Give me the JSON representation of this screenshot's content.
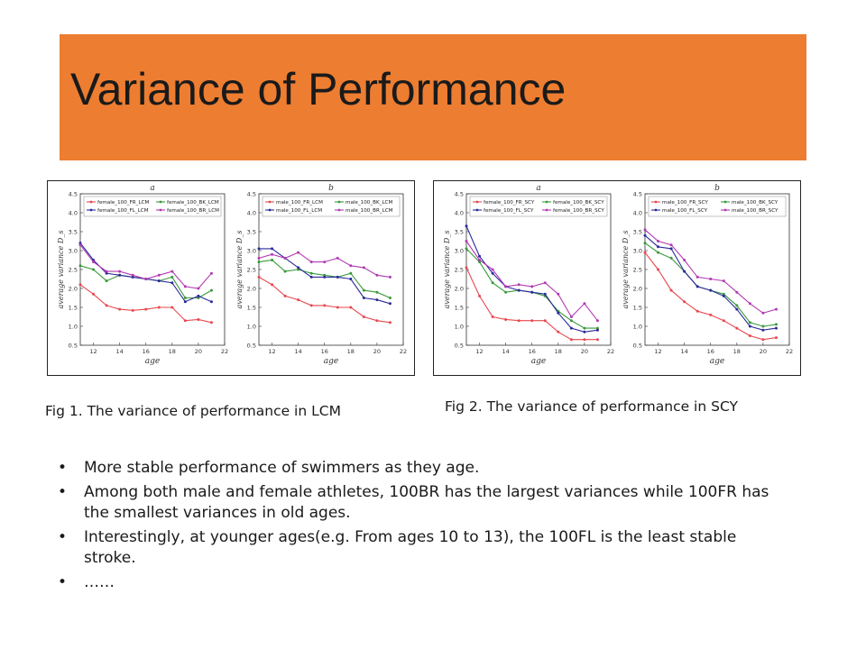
{
  "title": "Variance of Performance",
  "colors": {
    "banner": "#ED7D31"
  },
  "figures": [
    {
      "caption": "Fig 1. The variance of performance in LCM"
    },
    {
      "caption": "Fig 2. The variance of performance in SCY"
    }
  ],
  "bullets": [
    "More stable performance of swimmers as they age.",
    "Among both male and female athletes, 100BR has the largest variances while 100FR has the smallest variances in old ages.",
    "Interestingly, at younger ages(e.g.  From ages 10 to 13), the 100FL is the least stable stroke.",
    "……"
  ],
  "chart_data": [
    {
      "type": "line",
      "figure": 1,
      "title": "a",
      "xlabel": "age",
      "ylabel": "average variance D_s",
      "xlim": [
        11,
        22
      ],
      "ylim": [
        0.5,
        4.5
      ],
      "xticks": [
        12,
        14,
        16,
        18,
        20,
        22
      ],
      "yticks": [
        0.5,
        1.0,
        1.5,
        2.0,
        2.5,
        3.0,
        3.5,
        4.0,
        4.5
      ],
      "legend_position": "top",
      "grid": false,
      "x": [
        11,
        12,
        13,
        14,
        15,
        16,
        17,
        18,
        19,
        20,
        21
      ],
      "series": [
        {
          "name": "female_100_FR_LCM",
          "color": "#e8484e",
          "values": [
            2.1,
            1.85,
            1.55,
            1.45,
            1.42,
            1.45,
            1.5,
            1.5,
            1.15,
            1.18,
            1.1
          ]
        },
        {
          "name": "female_100_BK_LCM",
          "color": "#3a9a3a",
          "values": [
            2.6,
            2.5,
            2.2,
            2.35,
            2.3,
            2.25,
            2.2,
            2.3,
            1.75,
            1.75,
            1.95
          ]
        },
        {
          "name": "female_100_FL_LCM",
          "color": "#2a2a9a",
          "values": [
            3.2,
            2.75,
            2.4,
            2.35,
            2.3,
            2.25,
            2.2,
            2.15,
            1.65,
            1.8,
            1.65
          ]
        },
        {
          "name": "female_100_BR_LCM",
          "color": "#b23ab2",
          "values": [
            3.15,
            2.7,
            2.45,
            2.45,
            2.35,
            2.25,
            2.35,
            2.45,
            2.05,
            2.0,
            2.4
          ]
        }
      ]
    },
    {
      "type": "line",
      "figure": 1,
      "title": "b",
      "xlabel": "age",
      "ylabel": "average variance D_s",
      "xlim": [
        11,
        22
      ],
      "ylim": [
        0.5,
        4.5
      ],
      "xticks": [
        12,
        14,
        16,
        18,
        20,
        22
      ],
      "yticks": [
        0.5,
        1.0,
        1.5,
        2.0,
        2.5,
        3.0,
        3.5,
        4.0,
        4.5
      ],
      "legend_position": "top",
      "grid": false,
      "x": [
        11,
        12,
        13,
        14,
        15,
        16,
        17,
        18,
        19,
        20,
        21
      ],
      "series": [
        {
          "name": "male_100_FR_LCM",
          "color": "#e8484e",
          "values": [
            2.3,
            2.1,
            1.8,
            1.7,
            1.55,
            1.55,
            1.5,
            1.5,
            1.25,
            1.15,
            1.1
          ]
        },
        {
          "name": "male_100_BK_LCM",
          "color": "#3a9a3a",
          "values": [
            2.7,
            2.75,
            2.45,
            2.5,
            2.4,
            2.35,
            2.3,
            2.4,
            1.95,
            1.9,
            1.75
          ]
        },
        {
          "name": "male_100_FL_LCM",
          "color": "#2a2a9a",
          "values": [
            3.05,
            3.05,
            2.8,
            2.55,
            2.3,
            2.3,
            2.3,
            2.25,
            1.75,
            1.7,
            1.6
          ]
        },
        {
          "name": "male_100_BR_LCM",
          "color": "#b23ab2",
          "values": [
            2.8,
            2.9,
            2.8,
            2.95,
            2.7,
            2.7,
            2.8,
            2.6,
            2.55,
            2.35,
            2.3
          ]
        }
      ]
    },
    {
      "type": "line",
      "figure": 2,
      "title": "a",
      "xlabel": "age",
      "ylabel": "average variance D_s",
      "xlim": [
        11,
        22
      ],
      "ylim": [
        0.5,
        4.5
      ],
      "xticks": [
        12,
        14,
        16,
        18,
        20,
        22
      ],
      "yticks": [
        0.5,
        1.0,
        1.5,
        2.0,
        2.5,
        3.0,
        3.5,
        4.0,
        4.5
      ],
      "legend_position": "top",
      "grid": false,
      "x": [
        11,
        12,
        13,
        14,
        15,
        16,
        17,
        18,
        19,
        20,
        21
      ],
      "series": [
        {
          "name": "female_100_FR_SCY",
          "color": "#e8484e",
          "values": [
            2.55,
            1.8,
            1.25,
            1.18,
            1.15,
            1.15,
            1.15,
            0.85,
            0.65,
            0.65,
            0.65
          ]
        },
        {
          "name": "female_100_BK_SCY",
          "color": "#3a9a3a",
          "values": [
            3.05,
            2.7,
            2.15,
            1.9,
            1.95,
            1.9,
            1.8,
            1.4,
            1.15,
            0.95,
            0.95
          ]
        },
        {
          "name": "female_100_FL_SCY",
          "color": "#2a2a9a",
          "values": [
            3.65,
            2.85,
            2.4,
            2.05,
            1.95,
            1.9,
            1.85,
            1.35,
            0.95,
            0.85,
            0.9
          ]
        },
        {
          "name": "female_100_BR_SCY",
          "color": "#b23ab2",
          "values": [
            3.25,
            2.75,
            2.5,
            2.05,
            2.1,
            2.05,
            2.15,
            1.85,
            1.25,
            1.6,
            1.15
          ]
        }
      ]
    },
    {
      "type": "line",
      "figure": 2,
      "title": "b",
      "xlabel": "age",
      "ylabel": "average variance D_s",
      "xlim": [
        11,
        22
      ],
      "ylim": [
        0.5,
        4.5
      ],
      "xticks": [
        12,
        14,
        16,
        18,
        20,
        22
      ],
      "yticks": [
        0.5,
        1.0,
        1.5,
        2.0,
        2.5,
        3.0,
        3.5,
        4.0,
        4.5
      ],
      "legend_position": "top",
      "grid": false,
      "x": [
        11,
        12,
        13,
        14,
        15,
        16,
        17,
        18,
        19,
        20,
        21
      ],
      "series": [
        {
          "name": "male_100_FR_SCY",
          "color": "#e8484e",
          "values": [
            2.95,
            2.5,
            1.95,
            1.65,
            1.4,
            1.3,
            1.15,
            0.95,
            0.75,
            0.65,
            0.7
          ]
        },
        {
          "name": "male_100_BK_SCY",
          "color": "#3a9a3a",
          "values": [
            3.2,
            2.95,
            2.8,
            2.45,
            2.05,
            1.95,
            1.85,
            1.55,
            1.1,
            1.0,
            1.05
          ]
        },
        {
          "name": "male_100_FL_SCY",
          "color": "#2a2a9a",
          "values": [
            3.4,
            3.1,
            3.05,
            2.45,
            2.05,
            1.95,
            1.8,
            1.45,
            1.0,
            0.9,
            0.95
          ]
        },
        {
          "name": "male_100_BR_SCY",
          "color": "#b23ab2",
          "values": [
            3.55,
            3.25,
            3.15,
            2.75,
            2.3,
            2.25,
            2.2,
            1.9,
            1.6,
            1.35,
            1.45
          ]
        }
      ]
    }
  ]
}
